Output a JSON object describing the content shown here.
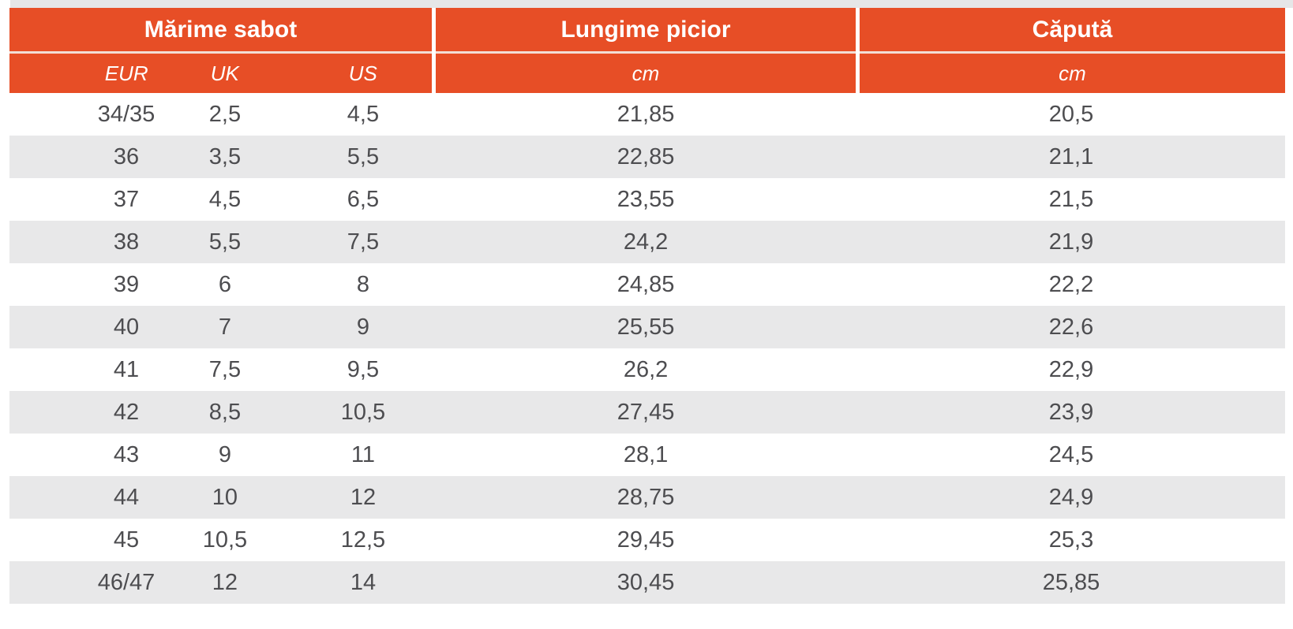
{
  "colors": {
    "accent_orange": "#E74E26",
    "header_text": "#FFFFFF",
    "row_alt_gray": "#E8E8E9",
    "top_strip_gray": "#E6E6E7",
    "data_text": "#4D4D50",
    "header_separator_line": "#F2DED6"
  },
  "chart_data": {
    "type": "table",
    "column_groups": [
      {
        "label": "Mărime sabot",
        "unit_row": [
          "EUR",
          "UK",
          "US"
        ]
      },
      {
        "label": "Lungime picior",
        "unit_row": [
          "cm"
        ]
      },
      {
        "label": "Căpută",
        "unit_row": [
          "cm"
        ]
      }
    ],
    "columns": [
      "EUR",
      "UK",
      "US",
      "Lungime picior (cm)",
      "Căpută (cm)"
    ],
    "rows": [
      {
        "eur": "34/35",
        "uk": "2,5",
        "us": "4,5",
        "foot_cm": "21,85",
        "upper_cm": "20,5"
      },
      {
        "eur": "36",
        "uk": "3,5",
        "us": "5,5",
        "foot_cm": "22,85",
        "upper_cm": "21,1"
      },
      {
        "eur": "37",
        "uk": "4,5",
        "us": "6,5",
        "foot_cm": "23,55",
        "upper_cm": "21,5"
      },
      {
        "eur": "38",
        "uk": "5,5",
        "us": "7,5",
        "foot_cm": "24,2",
        "upper_cm": "21,9"
      },
      {
        "eur": "39",
        "uk": "6",
        "us": "8",
        "foot_cm": "24,85",
        "upper_cm": "22,2"
      },
      {
        "eur": "40",
        "uk": "7",
        "us": "9",
        "foot_cm": "25,55",
        "upper_cm": "22,6"
      },
      {
        "eur": "41",
        "uk": "7,5",
        "us": "9,5",
        "foot_cm": "26,2",
        "upper_cm": "22,9"
      },
      {
        "eur": "42",
        "uk": "8,5",
        "us": "10,5",
        "foot_cm": "27,45",
        "upper_cm": "23,9"
      },
      {
        "eur": "43",
        "uk": "9",
        "us": "11",
        "foot_cm": "28,1",
        "upper_cm": "24,5"
      },
      {
        "eur": "44",
        "uk": "10",
        "us": "12",
        "foot_cm": "28,75",
        "upper_cm": "24,9"
      },
      {
        "eur": "45",
        "uk": "10,5",
        "us": "12,5",
        "foot_cm": "29,45",
        "upper_cm": "25,3"
      },
      {
        "eur": "46/47",
        "uk": "12",
        "us": "14",
        "foot_cm": "30,45",
        "upper_cm": "25,85"
      }
    ]
  }
}
